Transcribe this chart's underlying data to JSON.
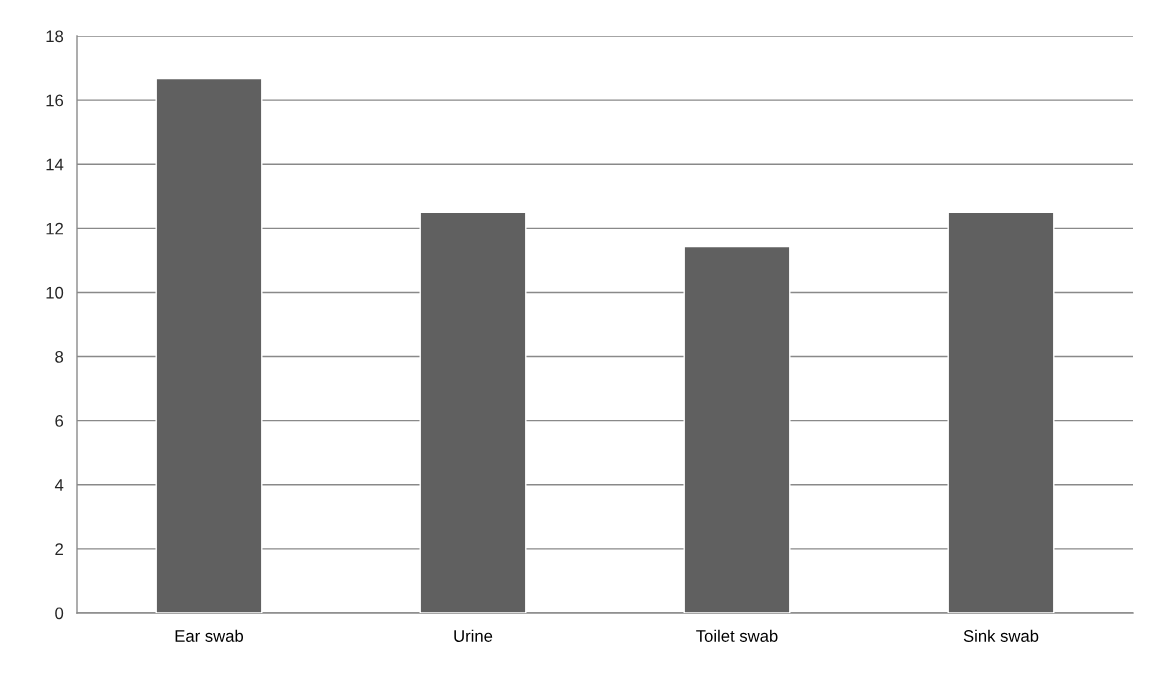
{
  "chart_data": {
    "type": "bar",
    "categories": [
      "Ear swab",
      "Urine",
      "Toilet swab",
      "Sink swab"
    ],
    "values": [
      16.67,
      12.5,
      11.43,
      12.5
    ],
    "color": "#606060",
    "ylim": [
      0,
      18
    ],
    "yticks": [
      0,
      2,
      4,
      6,
      8,
      10,
      12,
      14,
      16,
      18
    ],
    "grid": "y"
  }
}
